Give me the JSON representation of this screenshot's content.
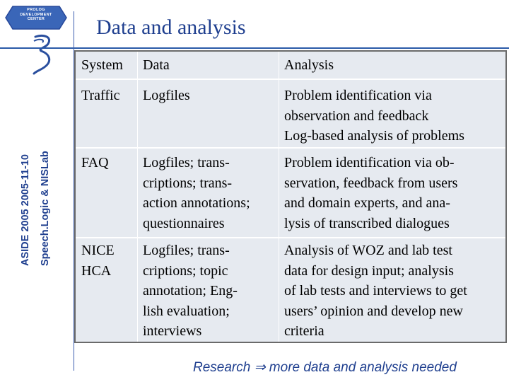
{
  "logo": {
    "lines": [
      "PROLOG",
      "DEVELOPMENT",
      "CENTER"
    ]
  },
  "title": "Data and analysis",
  "sidebar": {
    "line1": "ASIDE 2005  2005-11-10",
    "line2": "Speech.Logic  &  NISLab"
  },
  "table": {
    "headers": [
      "System",
      "Data",
      "Analysis"
    ],
    "rows": [
      {
        "system": [
          "Traffic"
        ],
        "data": [
          "Logfiles"
        ],
        "analysis": [
          "Problem identification via",
          "observation and feedback",
          "Log-based analysis of problems"
        ]
      },
      {
        "system": [
          "FAQ"
        ],
        "data": [
          "Logfiles; trans-",
          "criptions; trans-",
          "action annotations;",
          "questionnaires"
        ],
        "analysis": [
          "Problem identification via ob-",
          "servation, feedback from users",
          "and domain experts, and ana-",
          "lysis of transcribed dialogues"
        ]
      },
      {
        "system": [
          "NICE",
          "HCA"
        ],
        "data": [
          "Logfiles; trans-",
          "criptions; topic",
          "annotation; Eng-",
          "lish evaluation;",
          "interviews"
        ],
        "analysis": [
          "Analysis of WOZ and lab test",
          "data for design input; analysis",
          "of lab tests and interviews to get",
          "users’ opinion and develop new",
          "criteria"
        ]
      }
    ]
  },
  "footer": "Research ⇒ more data and analysis needed",
  "colors": {
    "brand": "#1f3f8f",
    "table_bg": "#e6eaf0"
  },
  "icons": {
    "logo_badge": "prolog-logo-icon",
    "mark": "speechlogic-mark-icon"
  }
}
